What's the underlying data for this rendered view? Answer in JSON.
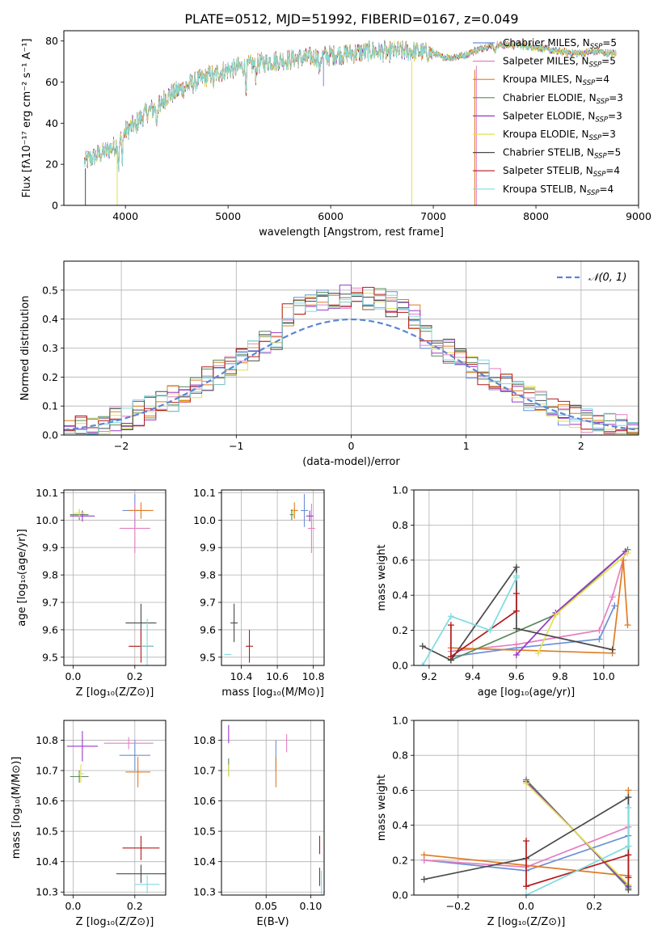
{
  "title": "PLATE=0512, MJD=51992, FIBERID=0167, z=0.049",
  "colors": [
    "#6b8fd6",
    "#e57fc0",
    "#e07b22",
    "#5b8a5b",
    "#9a38c8",
    "#e2e04a",
    "#4a4a4a",
    "#b51a1a",
    "#7fdbe0"
  ],
  "legend": [
    {
      "label": "Chabrier MILES, N",
      "sub": "SSP",
      "tail": "=5",
      "color": "#6b8fd6"
    },
    {
      "label": "Salpeter MILES, N",
      "sub": "SSP",
      "tail": "=5",
      "color": "#e57fc0"
    },
    {
      "label": "Kroupa MILES, N",
      "sub": "SSP",
      "tail": "=4",
      "color": "#e07b22"
    },
    {
      "label": "Chabrier ELODIE, N",
      "sub": "SSP",
      "tail": "=3",
      "color": "#5b8a5b"
    },
    {
      "label": "Salpeter ELODIE, N",
      "sub": "SSP",
      "tail": "=3",
      "color": "#9a38c8"
    },
    {
      "label": "Kroupa ELODIE, N",
      "sub": "SSP",
      "tail": "=3",
      "color": "#e2e04a"
    },
    {
      "label": "Chabrier STELIB, N",
      "sub": "SSP",
      "tail": "=5",
      "color": "#4a4a4a"
    },
    {
      "label": "Salpeter STELIB, N",
      "sub": "SSP",
      "tail": "=4",
      "color": "#b51a1a"
    },
    {
      "label": "Kroupa STELIB, N",
      "sub": "SSP",
      "tail": "=4",
      "color": "#7fdbe0"
    }
  ],
  "chart_data": [
    {
      "id": "spectrum",
      "type": "line",
      "xlabel": "wavelength [Angstrom, rest frame]",
      "ylabel": "Flux [fλ10⁻¹⁷ erg cm⁻² s⁻¹ A⁻¹]",
      "xlim": [
        3400,
        9000
      ],
      "ylim": [
        0,
        85
      ],
      "xticks": [
        4000,
        5000,
        6000,
        7000,
        8000,
        9000
      ],
      "yticks": [
        0,
        20,
        40,
        60,
        80
      ],
      "continuum": {
        "x": [
          3600,
          3700,
          3800,
          3900,
          4000,
          4100,
          4200,
          4300,
          4400,
          4600,
          4800,
          5000,
          5200,
          5400,
          5600,
          5800,
          6000,
          6200,
          6400,
          6600,
          6800,
          7000,
          7100,
          7200,
          7300,
          7400,
          7500,
          7600,
          7800,
          8000,
          8200,
          8400,
          8600,
          8700
        ],
        "y": [
          21,
          24,
          26,
          29,
          36,
          40,
          45,
          48,
          53,
          58,
          63,
          66,
          68,
          70,
          71,
          72,
          73,
          74,
          75,
          75,
          75,
          74,
          72,
          72,
          73,
          75,
          77,
          78,
          78,
          77,
          75,
          74,
          75,
          74
        ]
      }
    },
    {
      "id": "residuals",
      "type": "step",
      "xlabel": "(data-model)/error",
      "ylabel": "Normed distribution",
      "xlim": [
        -2.5,
        2.5
      ],
      "ylim": [
        0,
        0.6
      ],
      "xticks": [
        -2,
        -1,
        0,
        1,
        2
      ],
      "yticks": [
        0.0,
        0.1,
        0.2,
        0.3,
        0.4,
        0.5
      ],
      "legend": "𝒩(0, 1)",
      "bin_width": 0.1
    },
    {
      "id": "z-age",
      "type": "scatter",
      "xlabel": "Z [log₁₀(Z/Z⊙)]",
      "ylabel": "age  [log₁₀(age/yr)]",
      "xlim": [
        -0.03,
        0.3
      ],
      "ylim": [
        9.47,
        10.11
      ],
      "xticks": [
        0.0,
        0.2
      ],
      "yticks": [
        9.5,
        9.6,
        9.7,
        9.8,
        9.9,
        10.0,
        10.1
      ],
      "points": [
        {
          "x": 0.2,
          "y": 10.035,
          "xerr": 0.04,
          "yerr": 0.06,
          "c": 0
        },
        {
          "x": 0.2,
          "y": 9.97,
          "xerr": 0.05,
          "yerr": 0.09,
          "c": 1
        },
        {
          "x": 0.22,
          "y": 10.035,
          "xerr": 0.04,
          "yerr": 0.03,
          "c": 2
        },
        {
          "x": 0.02,
          "y": 10.02,
          "xerr": 0.03,
          "yerr": 0.02,
          "c": 3
        },
        {
          "x": 0.03,
          "y": 10.015,
          "xerr": 0.04,
          "yerr": 0.02,
          "c": 4
        },
        {
          "x": 0.02,
          "y": 10.025,
          "xerr": 0.02,
          "yerr": 0.015,
          "c": 5
        },
        {
          "x": 0.22,
          "y": 9.625,
          "xerr": 0.05,
          "yerr": 0.07,
          "c": 6
        },
        {
          "x": 0.22,
          "y": 9.54,
          "xerr": 0.04,
          "yerr": 0.06,
          "c": 7
        },
        {
          "x": 0.24,
          "y": 9.54,
          "xerr": 0.02,
          "yerr": 0.1,
          "c": 8
        }
      ]
    },
    {
      "id": "mass-age",
      "type": "scatter",
      "xlabel": "mass [log₁₀(M/M⊙)]",
      "ylabel": "",
      "xlim": [
        10.29,
        10.86
      ],
      "ylim": [
        9.47,
        10.11
      ],
      "xticks": [
        10.4,
        10.6,
        10.8
      ],
      "yticks": [
        9.5,
        9.6,
        9.7,
        9.8,
        9.9,
        10.0,
        10.1
      ],
      "points": [
        {
          "x": 10.75,
          "y": 10.035,
          "xerr": 0.02,
          "yerr": 0.06,
          "c": 0
        },
        {
          "x": 10.79,
          "y": 9.97,
          "xerr": 0.02,
          "yerr": 0.09,
          "c": 1
        },
        {
          "x": 10.695,
          "y": 10.035,
          "xerr": 0.02,
          "yerr": 0.03,
          "c": 2
        },
        {
          "x": 10.68,
          "y": 10.02,
          "xerr": 0.01,
          "yerr": 0.02,
          "c": 3
        },
        {
          "x": 10.78,
          "y": 10.015,
          "xerr": 0.02,
          "yerr": 0.02,
          "c": 4
        },
        {
          "x": 10.69,
          "y": 10.025,
          "xerr": 0.01,
          "yerr": 0.015,
          "c": 5
        },
        {
          "x": 10.36,
          "y": 9.625,
          "xerr": 0.02,
          "yerr": 0.07,
          "c": 6
        },
        {
          "x": 10.445,
          "y": 9.54,
          "xerr": 0.02,
          "yerr": 0.06,
          "c": 7
        },
        {
          "x": 10.325,
          "y": 9.51,
          "xerr": 0.02,
          "yerr": 0.0,
          "c": 8
        }
      ]
    },
    {
      "id": "age-massweight",
      "type": "line",
      "xlabel": "age  [log₁₀(age/yr)]",
      "ylabel": "mass weight",
      "xlim": [
        9.13,
        10.16
      ],
      "ylim": [
        0,
        1.0
      ],
      "xticks": [
        9.2,
        9.4,
        9.6,
        9.8,
        10.0
      ],
      "yticks": [
        0.0,
        0.2,
        0.4,
        0.6,
        0.8,
        1.0
      ],
      "series": [
        {
          "c": 0,
          "x": [
            9.3,
            9.6,
            9.98,
            10.05
          ],
          "y": [
            0.05,
            0.1,
            0.15,
            0.34
          ]
        },
        {
          "c": 1,
          "x": [
            9.3,
            9.6,
            9.98,
            10.04,
            10.1
          ],
          "y": [
            0.08,
            0.12,
            0.2,
            0.39,
            0.65
          ]
        },
        {
          "c": 2,
          "x": [
            9.3,
            10.04,
            10.09,
            10.11
          ],
          "y": [
            0.1,
            0.07,
            0.6,
            0.23
          ]
        },
        {
          "c": 3,
          "x": [
            9.3,
            9.78,
            10.11
          ],
          "y": [
            0.03,
            0.29,
            0.66
          ]
        },
        {
          "c": 4,
          "x": [
            9.6,
            9.78,
            10.1
          ],
          "y": [
            0.06,
            0.3,
            0.65
          ]
        },
        {
          "c": 5,
          "x": [
            9.7,
            9.78,
            10.11
          ],
          "y": [
            0.07,
            0.29,
            0.64
          ]
        },
        {
          "c": 6,
          "x": [
            9.17,
            9.3,
            9.6,
            9.6,
            10.04
          ],
          "y": [
            0.11,
            0.03,
            0.56,
            0.21,
            0.09
          ]
        },
        {
          "c": 7,
          "x": [
            9.3,
            9.3,
            9.6,
            9.6
          ],
          "y": [
            0.23,
            0.05,
            0.31,
            0.41
          ]
        },
        {
          "c": 8,
          "x": [
            9.17,
            9.3,
            9.48,
            9.6,
            9.6
          ],
          "y": [
            0.0,
            0.28,
            0.2,
            0.5,
            0.51
          ]
        }
      ]
    },
    {
      "id": "z-mass",
      "type": "scatter",
      "xlabel": "Z [log₁₀(Z/Z⊙)]",
      "ylabel": "mass [log₁₀(M/M⊙)]",
      "xlim": [
        -0.03,
        0.3
      ],
      "ylim": [
        10.29,
        10.865
      ],
      "xticks": [
        0.0,
        0.2
      ],
      "yticks": [
        10.3,
        10.4,
        10.5,
        10.6,
        10.7,
        10.8
      ],
      "points": [
        {
          "x": 0.2,
          "y": 10.75,
          "xerr": 0.05,
          "yerr": 0.05,
          "c": 0
        },
        {
          "x": 0.18,
          "y": 10.79,
          "xerr": 0.08,
          "yerr": 0.02,
          "c": 1
        },
        {
          "x": 0.21,
          "y": 10.695,
          "xerr": 0.04,
          "yerr": 0.05,
          "c": 2
        },
        {
          "x": 0.02,
          "y": 10.68,
          "xerr": 0.03,
          "yerr": 0.02,
          "c": 3
        },
        {
          "x": 0.03,
          "y": 10.78,
          "xerr": 0.05,
          "yerr": 0.05,
          "c": 4
        },
        {
          "x": 0.025,
          "y": 10.69,
          "xerr": 0.01,
          "yerr": 0.03,
          "c": 5
        },
        {
          "x": 0.22,
          "y": 10.36,
          "xerr": 0.08,
          "yerr": 0.03,
          "c": 6
        },
        {
          "x": 0.22,
          "y": 10.445,
          "xerr": 0.06,
          "yerr": 0.04,
          "c": 7
        },
        {
          "x": 0.24,
          "y": 10.325,
          "xerr": 0.04,
          "yerr": 0.03,
          "c": 8
        }
      ]
    },
    {
      "id": "ebv-mass",
      "type": "scatter",
      "xlabel": "E(B-V)",
      "ylabel": "",
      "xlim": [
        0.0,
        0.115
      ],
      "ylim": [
        10.29,
        10.865
      ],
      "xticks": [
        0.05,
        0.1
      ],
      "yticks": [
        10.3,
        10.4,
        10.5,
        10.6,
        10.7,
        10.8
      ],
      "points": [
        {
          "x": 0.061,
          "y": 10.75,
          "xerr": 0,
          "yerr": 0.05,
          "c": 0
        },
        {
          "x": 0.073,
          "y": 10.79,
          "xerr": 0,
          "yerr": 0.03,
          "c": 1
        },
        {
          "x": 0.061,
          "y": 10.695,
          "xerr": 0,
          "yerr": 0.05,
          "c": 2
        },
        {
          "x": 0.008,
          "y": 10.71,
          "xerr": 0,
          "yerr": 0.03,
          "c": 3
        },
        {
          "x": 0.008,
          "y": 10.82,
          "xerr": 0,
          "yerr": 0.03,
          "c": 4
        },
        {
          "x": 0.008,
          "y": 10.7,
          "xerr": 0,
          "yerr": 0.02,
          "c": 5
        },
        {
          "x": 0.11,
          "y": 10.35,
          "xerr": 0,
          "yerr": 0.03,
          "c": 6
        },
        {
          "x": 0.11,
          "y": 10.455,
          "xerr": 0,
          "yerr": 0.03,
          "c": 7
        },
        {
          "x": 0.112,
          "y": 10.33,
          "xerr": 0,
          "yerr": 0.04,
          "c": 8
        }
      ]
    },
    {
      "id": "z-massweight",
      "type": "line",
      "xlabel": "Z [log₁₀(Z/Z⊙)]",
      "ylabel": "mass weight",
      "xlim": [
        -0.33,
        0.33
      ],
      "ylim": [
        0,
        1.0
      ],
      "xticks": [
        -0.2,
        0.0,
        0.2
      ],
      "yticks": [
        0.0,
        0.2,
        0.4,
        0.6,
        0.8,
        1.0
      ],
      "series": [
        {
          "c": 0,
          "x": [
            -0.3,
            0.0,
            0.3
          ],
          "y": [
            0.2,
            0.14,
            0.34
          ]
        },
        {
          "c": 1,
          "x": [
            -0.3,
            0.0,
            0.3
          ],
          "y": [
            0.2,
            0.16,
            0.39
          ]
        },
        {
          "c": 2,
          "x": [
            -0.3,
            0.3,
            0.3
          ],
          "y": [
            0.23,
            0.11,
            0.6
          ]
        },
        {
          "c": 3,
          "x": [
            0.0,
            0.3
          ],
          "y": [
            0.66,
            0.04
          ]
        },
        {
          "c": 4,
          "x": [
            0.0,
            0.3
          ],
          "y": [
            0.65,
            0.05
          ]
        },
        {
          "c": 5,
          "x": [
            0.0,
            0.3
          ],
          "y": [
            0.64,
            0.06
          ]
        },
        {
          "c": 6,
          "x": [
            -0.3,
            0.0,
            0.3,
            0.3
          ],
          "y": [
            0.09,
            0.21,
            0.56,
            0.03
          ]
        },
        {
          "c": 7,
          "x": [
            0.0,
            0.0,
            0.3,
            0.3
          ],
          "y": [
            0.31,
            0.05,
            0.23,
            0.1
          ]
        },
        {
          "c": 8,
          "x": [
            0.0,
            0.3,
            0.3
          ],
          "y": [
            0.0,
            0.28,
            0.5
          ]
        }
      ]
    }
  ]
}
